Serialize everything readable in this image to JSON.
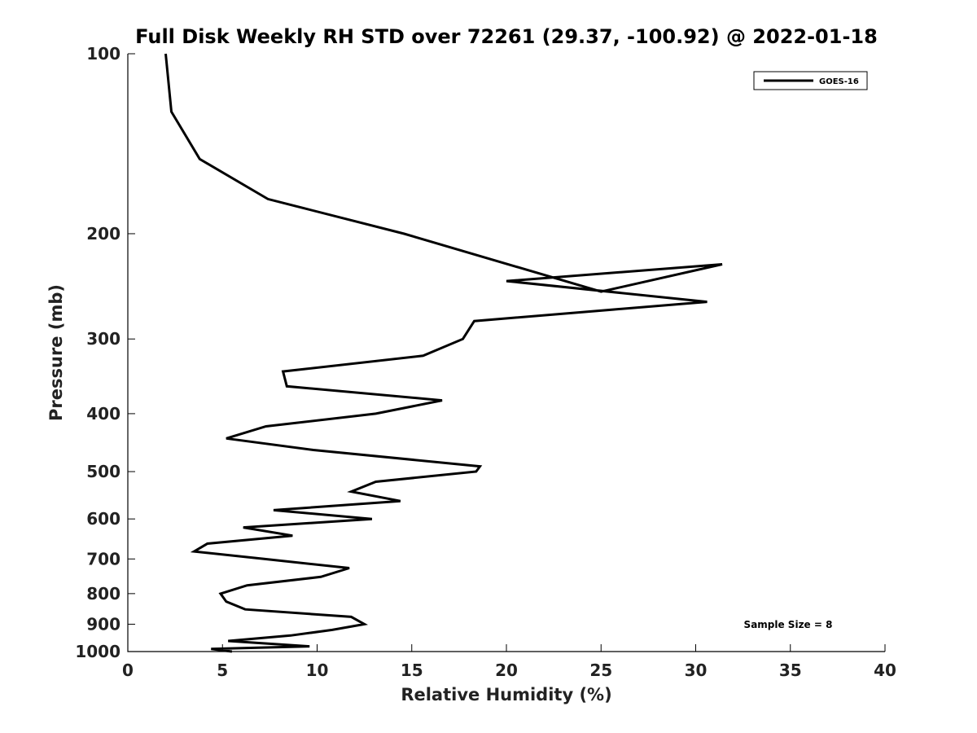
{
  "chart_data": {
    "type": "line",
    "title": "Full Disk Weekly RH STD over 72261 (29.37, -100.92) @ 2022-01-18",
    "xlabel": "Relative Humidity (%)",
    "ylabel": "Pressure (mb)",
    "xlim": [
      0,
      40
    ],
    "ylim": [
      100,
      1000
    ],
    "y_scale": "log",
    "y_reversed": true,
    "grid": false,
    "x_ticks": [
      0,
      5,
      10,
      15,
      20,
      25,
      30,
      35,
      40
    ],
    "y_ticks": [
      100,
      200,
      300,
      400,
      500,
      600,
      700,
      800,
      900,
      1000
    ],
    "legend": {
      "placement": "top-right",
      "entries": [
        "GOES-16"
      ]
    },
    "annotation": "Sample Size = 8",
    "series": [
      {
        "name": "GOES-16",
        "color": "#000000",
        "x": [
          2.0,
          2.3,
          3.8,
          7.4,
          14.6,
          25.0,
          31.4,
          20.0,
          30.6,
          18.3,
          17.7,
          15.6,
          8.2,
          8.4,
          16.6,
          13.1,
          7.3,
          5.2,
          9.8,
          18.6,
          18.4,
          13.1,
          11.8,
          14.4,
          7.7,
          12.9,
          6.1,
          8.7,
          4.2,
          3.5,
          7.2,
          11.7,
          10.2,
          6.3,
          4.9,
          5.2,
          6.2,
          11.8,
          12.5,
          10.8,
          8.6,
          5.3,
          9.6,
          4.4,
          5.5
        ],
        "y": [
          100,
          125,
          150,
          175,
          200,
          250,
          225,
          240,
          260,
          280,
          300,
          320,
          340,
          360,
          380,
          400,
          420,
          440,
          460,
          490,
          500,
          520,
          540,
          560,
          580,
          600,
          620,
          640,
          660,
          680,
          700,
          725,
          750,
          775,
          800,
          825,
          850,
          875,
          900,
          920,
          940,
          960,
          980,
          990,
          1000
        ]
      }
    ]
  }
}
